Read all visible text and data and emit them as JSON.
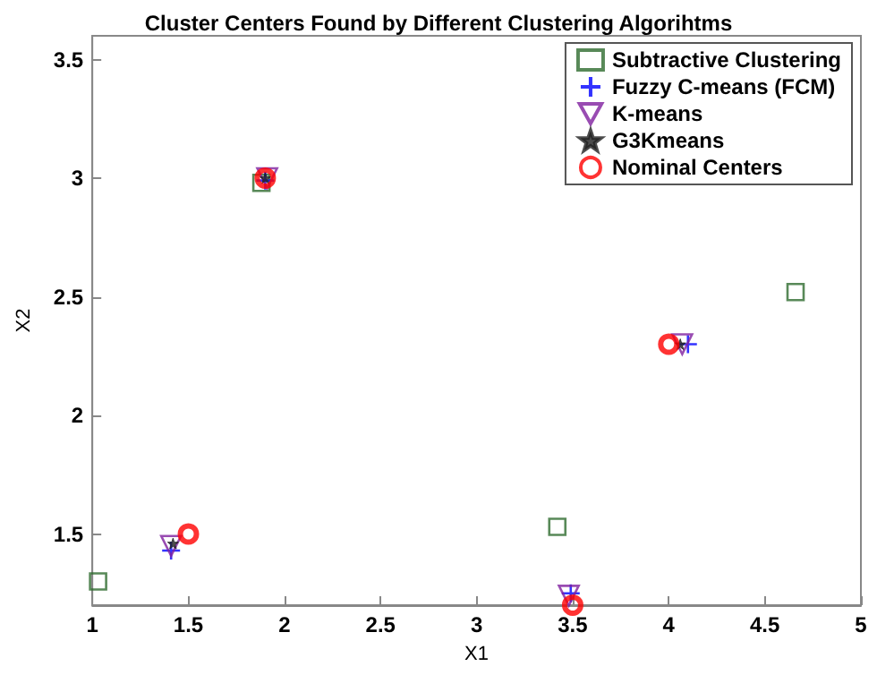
{
  "chart_data": {
    "type": "scatter",
    "title": "Cluster Centers Found by Different Clustering Algorihtms",
    "xlabel": "X1",
    "ylabel": "X2",
    "xlim": [
      1,
      5
    ],
    "xticks": [
      1,
      1.5,
      2,
      2.5,
      3,
      3.5,
      4,
      4.5,
      5
    ],
    "ylim": [
      1.2,
      3.6
    ],
    "yticks": [
      1.5,
      2,
      2.5,
      3,
      3.5
    ],
    "grid": false,
    "legend": "top right",
    "series": [
      {
        "name": "Subtractive Clustering",
        "color": "#2e6b2e",
        "marker": "square",
        "x": [
          1.03,
          1.88,
          3.42,
          4.66
        ],
        "values": [
          1.3,
          2.98,
          1.53,
          2.52
        ]
      },
      {
        "name": "Fuzzy C-means (FCM)",
        "color": "#0000ff",
        "marker": "cross",
        "x": [
          1.41,
          1.9,
          3.49,
          4.1
        ],
        "values": [
          1.43,
          2.99,
          1.25,
          2.3
        ]
      },
      {
        "name": "K-means",
        "color": "#7f1f9f",
        "marker": "triangle",
        "x": [
          1.41,
          1.91,
          3.48,
          4.07
        ],
        "values": [
          1.45,
          3.0,
          1.24,
          2.3
        ]
      },
      {
        "name": "G3Kmeans",
        "color": "#202020",
        "marker": "star",
        "x": [
          1.42,
          1.9,
          3.5,
          4.06
        ],
        "values": [
          1.46,
          3.0,
          null,
          2.3
        ]
      },
      {
        "name": "Nominal Centers",
        "color": "#ff0000",
        "marker": "circle",
        "x": [
          1.5,
          1.9,
          3.5,
          4.0
        ],
        "values": [
          1.5,
          3.0,
          1.2,
          2.3
        ]
      }
    ]
  }
}
